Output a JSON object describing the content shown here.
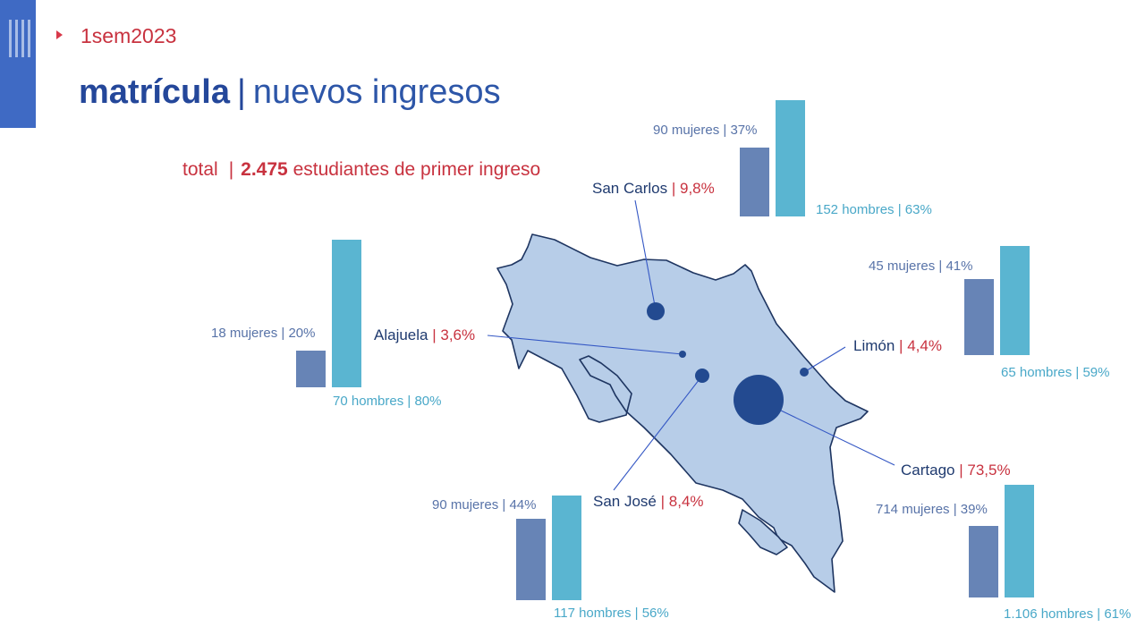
{
  "header": {
    "semester": "1sem2023",
    "title_bold": "matrícula",
    "title_separator": "|",
    "title_rest": "nuevos ingresos"
  },
  "total": {
    "label": "total",
    "separator": "|",
    "value": "2.475",
    "suffix": "estudiantes de primer ingreso"
  },
  "colors": {
    "women_bar": "#6784b6",
    "men_bar": "#5ab5d1",
    "map_fill": "#b7cde8",
    "map_stroke": "#1e3561",
    "marker": "#234a90",
    "accent_red": "#c8323f"
  },
  "regions": [
    {
      "name": "San Carlos",
      "share": "9,8%",
      "women_label": "90 mujeres",
      "women_pct": "37%",
      "men_label": "152 hombres",
      "men_pct": "63%",
      "women": 90,
      "men": 152
    },
    {
      "name": "Alajuela",
      "share": "3,6%",
      "women_label": "18 mujeres",
      "women_pct": "20%",
      "men_label": "70 hombres",
      "men_pct": "80%",
      "women": 18,
      "men": 70
    },
    {
      "name": "Limón",
      "share": "4,4%",
      "women_label": "45 mujeres",
      "women_pct": "41%",
      "men_label": "65 hombres",
      "men_pct": "59%",
      "women": 45,
      "men": 65
    },
    {
      "name": "San José",
      "share": "8,4%",
      "women_label": "90 mujeres",
      "women_pct": "44%",
      "men_label": "117 hombres",
      "men_pct": "56%",
      "women": 90,
      "men": 117
    },
    {
      "name": "Cartago",
      "share": "73,5%",
      "women_label": "714 mujeres",
      "women_pct": "39%",
      "men_label": "1.106 hombres",
      "men_pct": "61%",
      "women": 714,
      "men": 1106
    }
  ]
}
